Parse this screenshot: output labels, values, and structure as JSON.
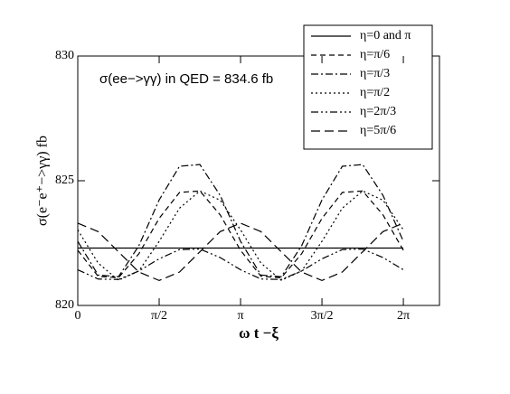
{
  "chart_data": {
    "type": "line",
    "annotation": "σ(ee−>γγ) in QED = 834.6 fb",
    "x_label": "ω t  −ξ",
    "y_label": "σ(e⁻e⁺−>γγ)  fb",
    "x": [
      0,
      0.3927,
      0.7854,
      1.1781,
      1.5708,
      1.9635,
      2.3562,
      2.7489,
      3.1416,
      3.5343,
      3.927,
      4.3197,
      4.7124,
      5.1051,
      5.4978,
      5.8905,
      6.2832
    ],
    "series": [
      {
        "name": "η=0  and  π",
        "color": "#000000",
        "dash": "none",
        "values": [
          822.3,
          822.3,
          822.3,
          822.3,
          822.3,
          822.3,
          822.3,
          822.3,
          822.3,
          822.3,
          822.3,
          822.3,
          822.3,
          822.3,
          822.3,
          822.3,
          822.3
        ]
      },
      {
        "name": "η=π/6",
        "color": "#000000",
        "dash": "6,4",
        "values": [
          822.21,
          821.17,
          821.11,
          822.07,
          823.49,
          824.53,
          824.59,
          823.63,
          822.21,
          821.17,
          821.11,
          822.07,
          823.49,
          824.53,
          824.59,
          823.63,
          822.21
        ]
      },
      {
        "name": "η=π/3",
        "color": "#000000",
        "dash": "8,3,2,3",
        "values": [
          822.57,
          821.22,
          821.15,
          822.39,
          824.23,
          825.58,
          825.65,
          824.41,
          822.57,
          821.22,
          821.15,
          822.39,
          824.23,
          825.58,
          825.65,
          824.41,
          822.57
        ]
      },
      {
        "name": "η=π/2",
        "color": "#000000",
        "dash": "2,3",
        "values": [
          823.03,
          821.7,
          821.01,
          821.38,
          822.57,
          823.9,
          824.59,
          824.22,
          823.03,
          821.7,
          821.01,
          821.38,
          822.57,
          823.9,
          824.59,
          824.22,
          823.03
        ]
      },
      {
        "name": "η=2π/3",
        "color": "#000000",
        "dash": "8,3,2,3,2,3",
        "values": [
          821.43,
          821.06,
          821.04,
          821.38,
          821.87,
          822.24,
          822.26,
          821.92,
          821.43,
          821.06,
          821.04,
          821.38,
          821.87,
          822.24,
          822.26,
          821.92,
          821.43
        ]
      },
      {
        "name": "η=5π/6",
        "color": "#000000",
        "dash": "10,5",
        "values": [
          823.3,
          822.96,
          822.15,
          821.34,
          821.0,
          821.34,
          822.15,
          822.96,
          823.3,
          822.96,
          822.15,
          821.34,
          821.0,
          821.34,
          822.15,
          822.96,
          823.3
        ]
      }
    ],
    "xlim": [
      0,
      6.98
    ],
    "ylim": [
      820,
      830
    ],
    "xticks": [
      0,
      {
        "value": 1.5708,
        "label": "π/2"
      },
      {
        "value": 3.1416,
        "label": "π"
      },
      {
        "value": 4.7124,
        "label": "3π/2"
      },
      {
        "value": 6.2832,
        "label": "2π"
      }
    ],
    "yticks": [
      820,
      825,
      830
    ]
  }
}
